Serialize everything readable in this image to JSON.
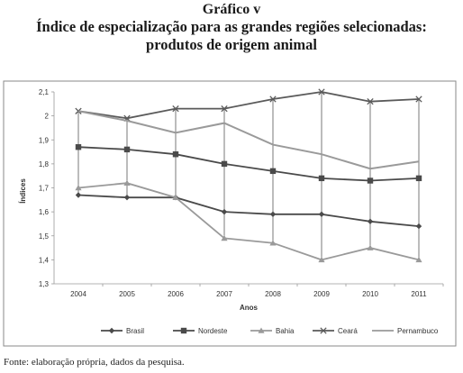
{
  "figure": {
    "label": "Gráfico v",
    "title_line1": "Índice de especialização para as grandes regiões selecionadas:",
    "title_line2": "produtos de origem animal",
    "source": "Fonte: elaboração própria, dados da pesquisa."
  },
  "chart_data": {
    "type": "line",
    "xlabel": "Anos",
    "ylabel": "Índices",
    "categories": [
      "2004",
      "2005",
      "2006",
      "2007",
      "2008",
      "2009",
      "2010",
      "2011"
    ],
    "ylim": [
      1.3,
      2.1
    ],
    "yticks": [
      "1,3",
      "1,4",
      "1,5",
      "1,6",
      "1,7",
      "1,8",
      "1,9",
      "2",
      "2,1"
    ],
    "grid": "vertical drop lines",
    "legend_position": "bottom",
    "series": [
      {
        "name": "Brasil",
        "values": [
          1.67,
          1.66,
          1.66,
          1.6,
          1.59,
          1.59,
          1.56,
          1.54
        ],
        "marker": "diamond",
        "color": "#4a4a4a"
      },
      {
        "name": "Nordeste",
        "values": [
          1.87,
          1.86,
          1.84,
          1.8,
          1.77,
          1.74,
          1.73,
          1.74
        ],
        "marker": "square",
        "color": "#4a4a4a"
      },
      {
        "name": "Bahia",
        "values": [
          1.7,
          1.72,
          1.66,
          1.49,
          1.47,
          1.4,
          1.45,
          1.4
        ],
        "marker": "triangle",
        "color": "#9a9a9a"
      },
      {
        "name": "Ceará",
        "values": [
          2.02,
          1.99,
          2.03,
          2.03,
          2.07,
          2.1,
          2.06,
          2.07
        ],
        "marker": "x",
        "color": "#5a5a5a"
      },
      {
        "name": "Pernambuco",
        "values": [
          2.02,
          1.98,
          1.93,
          1.97,
          1.88,
          1.84,
          1.78,
          1.81
        ],
        "marker": "none",
        "color": "#9a9a9a"
      }
    ]
  }
}
